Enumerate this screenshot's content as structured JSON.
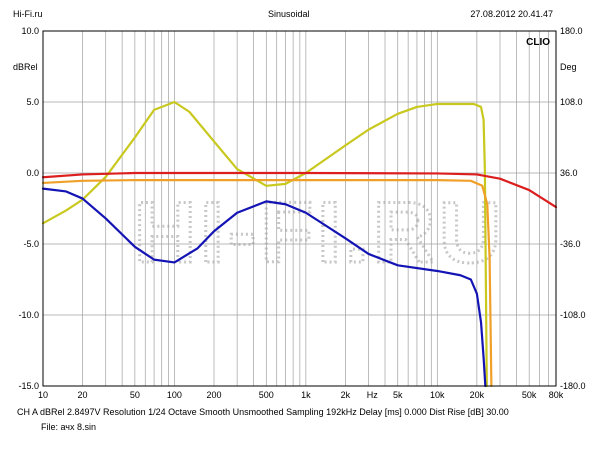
{
  "header": {
    "left": "Hi-Fi.ru",
    "center": "Sinusoidal",
    "right": "27.08.2012 20.41.47"
  },
  "logo_text": "CLIO",
  "watermark_text": "HI-FI.RU",
  "footer": {
    "line1": "CH A   dBRel 2.8497V   Resolution 1/24 Octave   Smooth Unsmoothed   Sampling 192kHz   Delay [ms] 0.000   Dist Rise [dB] 30.00",
    "line2": "File: ачх 8.sin"
  },
  "colors": {
    "grid": "#a0a0a0",
    "frame": "#000000",
    "yellow": "#c8c81e",
    "red": "#dc1e1e",
    "orange": "#f0a028",
    "blue": "#1414b4",
    "watermark": "#c8c8c8"
  },
  "chart_data": {
    "type": "line",
    "x_scale": "log",
    "xlim": [
      10,
      80000
    ],
    "x_ticks": [
      {
        "value": 10,
        "label": "10"
      },
      {
        "value": 20,
        "label": "20"
      },
      {
        "value": 50,
        "label": "50"
      },
      {
        "value": 100,
        "label": "100"
      },
      {
        "value": 200,
        "label": "200"
      },
      {
        "value": 500,
        "label": "500"
      },
      {
        "value": 1000,
        "label": "1k"
      },
      {
        "value": 2000,
        "label": "2k"
      },
      {
        "value": 5000,
        "label": "5k"
      },
      {
        "value": 10000,
        "label": "10k"
      },
      {
        "value": 20000,
        "label": "20k"
      },
      {
        "value": 50000,
        "label": "50k"
      },
      {
        "value": 80000,
        "label": "80k"
      }
    ],
    "x_unit_label": "Hz",
    "x_unit_value": 3200,
    "ylabel_left": "dBRel",
    "ylabel_right": "Deg",
    "ylim_left": [
      -15,
      10
    ],
    "ylim_right": [
      -180,
      180
    ],
    "y_ticks_left": [
      "10.0",
      "5.0",
      "0.0",
      "-5.0",
      "-10.0",
      "-15.0"
    ],
    "y_ticks_right": [
      "180.0",
      "108.0",
      "36.0",
      "-36.0",
      "-108.0",
      "-180.0"
    ],
    "series": [
      {
        "color_key": "yellow",
        "axis": "right",
        "points": [
          [
            10,
            -15
          ],
          [
            15,
            -2
          ],
          [
            20,
            9
          ],
          [
            30,
            32
          ],
          [
            50,
            72
          ],
          [
            70,
            100
          ],
          [
            100,
            108
          ],
          [
            130,
            98
          ],
          [
            200,
            68
          ],
          [
            300,
            40
          ],
          [
            500,
            23
          ],
          [
            700,
            25
          ],
          [
            1000,
            36
          ],
          [
            2000,
            64
          ],
          [
            3000,
            80
          ],
          [
            5000,
            96
          ],
          [
            7000,
            103
          ],
          [
            10000,
            106
          ],
          [
            15000,
            106
          ],
          [
            19000,
            106
          ],
          [
            21500,
            103
          ],
          [
            22500,
            90
          ],
          [
            23000,
            40
          ],
          [
            23800,
            -180
          ]
        ]
      },
      {
        "color_key": "red",
        "axis": "left",
        "points": [
          [
            10,
            -0.3
          ],
          [
            20,
            -0.1
          ],
          [
            50,
            0
          ],
          [
            1000,
            0
          ],
          [
            10000,
            -0.03
          ],
          [
            20000,
            -0.1
          ],
          [
            30000,
            -0.4
          ],
          [
            50000,
            -1.2
          ],
          [
            80000,
            -2.4
          ]
        ]
      },
      {
        "color_key": "orange",
        "axis": "left",
        "points": [
          [
            10,
            -0.7
          ],
          [
            20,
            -0.55
          ],
          [
            50,
            -0.5
          ],
          [
            1000,
            -0.5
          ],
          [
            10000,
            -0.5
          ],
          [
            18000,
            -0.55
          ],
          [
            22000,
            -0.9
          ],
          [
            24000,
            -2.2
          ],
          [
            25000,
            -6
          ],
          [
            25800,
            -15
          ]
        ]
      },
      {
        "color_key": "blue",
        "axis": "left",
        "points": [
          [
            10,
            -1.1
          ],
          [
            15,
            -1.3
          ],
          [
            20,
            -1.8
          ],
          [
            30,
            -3.2
          ],
          [
            50,
            -5.2
          ],
          [
            70,
            -6.1
          ],
          [
            100,
            -6.3
          ],
          [
            150,
            -5.3
          ],
          [
            200,
            -4.1
          ],
          [
            300,
            -2.8
          ],
          [
            500,
            -2.0
          ],
          [
            700,
            -2.2
          ],
          [
            1000,
            -2.8
          ],
          [
            2000,
            -4.6
          ],
          [
            3000,
            -5.7
          ],
          [
            5000,
            -6.5
          ],
          [
            10000,
            -6.9
          ],
          [
            15000,
            -7.2
          ],
          [
            18000,
            -7.5
          ],
          [
            20000,
            -8.5
          ],
          [
            21500,
            -10.5
          ],
          [
            22500,
            -13
          ],
          [
            23200,
            -15
          ]
        ]
      }
    ]
  }
}
